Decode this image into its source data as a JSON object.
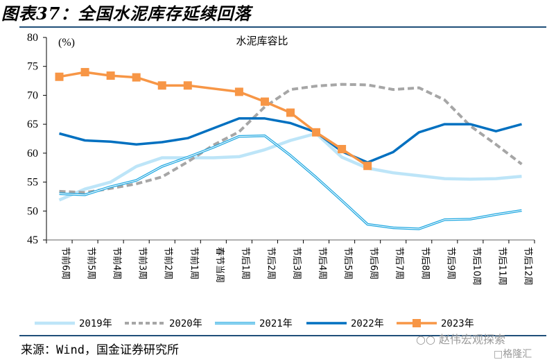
{
  "header": {
    "figure_title": "图表37：全国水泥库存延续回落"
  },
  "footer": {
    "source": "来源：Wind，国金证券研究所",
    "watermark_primary": "赵伟宏观探索",
    "watermark_secondary": "格隆汇",
    "watermark_icon": "wechat-icon"
  },
  "chart_data": {
    "type": "line",
    "title": "水泥库容比",
    "unit_label": "(%)",
    "xlabel": "",
    "ylabel": "(%)",
    "ylim": [
      45,
      80
    ],
    "yticks": [
      45,
      50,
      55,
      60,
      65,
      70,
      75,
      80
    ],
    "grid": false,
    "legend_position": "bottom",
    "categories": [
      "节前6周",
      "节前5周",
      "节前4周",
      "节前3周",
      "节前2周",
      "节前1周",
      "春节当周",
      "节后1周",
      "节后2周",
      "节后3周",
      "节后4周",
      "节后5周",
      "节后6周",
      "节后7周",
      "节后8周",
      "节后9周",
      "节后10周",
      "节后11周",
      "节后12周"
    ],
    "series": [
      {
        "name": "2019年",
        "color": "#bde5f8",
        "style": "solid-light",
        "marker": "none",
        "values": [
          51.9,
          53.8,
          55.0,
          57.7,
          59.2,
          59.2,
          59.2,
          59.4,
          60.6,
          62.2,
          63.4,
          59.3,
          57.4,
          56.6,
          56.1,
          55.6,
          55.5,
          55.6,
          56.0
        ]
      },
      {
        "name": "2020年",
        "color": "#a6a6a6",
        "style": "dashed",
        "marker": "none",
        "values": [
          53.4,
          53.2,
          53.9,
          54.7,
          55.9,
          58.5,
          61.4,
          63.7,
          68.0,
          71.0,
          71.6,
          71.9,
          71.8,
          71.0,
          71.3,
          69.2,
          64.7,
          61.5,
          58.1
        ]
      },
      {
        "name": "2021年",
        "color": "#1ea7e1",
        "style": "double",
        "marker": "none",
        "values": [
          53.0,
          52.8,
          54.2,
          55.3,
          57.7,
          59.3,
          61.0,
          62.9,
          63.0,
          59.6,
          55.8,
          51.8,
          47.7,
          47.1,
          46.9,
          48.5,
          48.6,
          49.4,
          50.1
        ]
      },
      {
        "name": "2022年",
        "color": "#0070c0",
        "style": "solid",
        "marker": "none",
        "values": [
          63.4,
          62.2,
          62.0,
          61.5,
          61.9,
          62.6,
          64.3,
          66.0,
          66.0,
          65.2,
          63.6,
          60.3,
          58.4,
          60.2,
          63.6,
          65.0,
          65.0,
          63.8,
          65.0
        ]
      },
      {
        "name": "2023年",
        "color": "#f79646",
        "style": "solid",
        "marker": "square",
        "values": [
          73.2,
          74.0,
          73.4,
          73.1,
          71.7,
          71.7,
          null,
          70.6,
          68.9,
          67.0,
          63.6,
          60.7,
          57.8,
          null,
          null,
          null,
          null,
          null,
          null
        ]
      }
    ]
  }
}
